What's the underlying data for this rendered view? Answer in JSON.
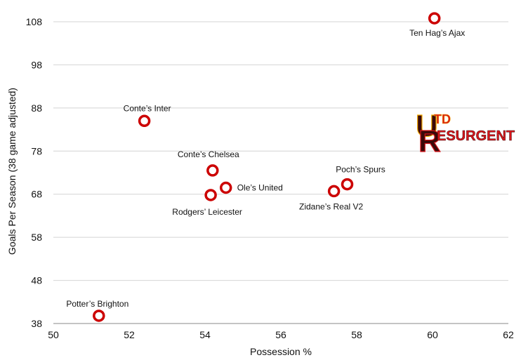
{
  "chart_data": {
    "type": "scatter",
    "title": "",
    "xlabel": "Possession %",
    "ylabel": "Goals Per Season (38 game adjusted)",
    "xlim": [
      50,
      62
    ],
    "ylim": [
      38,
      112
    ],
    "x_ticks": [
      50,
      52,
      54,
      56,
      58,
      60,
      62
    ],
    "y_ticks": [
      38,
      48,
      58,
      68,
      78,
      88,
      98,
      108
    ],
    "grid": true,
    "marker_color": "#cc0000",
    "points": [
      {
        "label": "Ten Hag’s Ajax",
        "x": 60.05,
        "y": 108.8
      },
      {
        "label": "Conte’s Inter",
        "x": 52.4,
        "y": 85.0
      },
      {
        "label": "Conte’s Chelsea",
        "x": 54.2,
        "y": 73.5
      },
      {
        "label": "Ole’s United",
        "x": 54.55,
        "y": 69.5
      },
      {
        "label": "Rodgers’ Leicester",
        "x": 54.15,
        "y": 67.8
      },
      {
        "label": "Poch’s Spurs",
        "x": 57.75,
        "y": 70.3
      },
      {
        "label": "Zidane’s Real V2",
        "x": 57.4,
        "y": 68.7
      },
      {
        "label": "Potter’s Brighton",
        "x": 51.2,
        "y": 39.8
      }
    ]
  },
  "logo": {
    "big": "U",
    "top": "TD",
    "bottom": "ESURGENT",
    "r": "R",
    "colors": {
      "dark": "#3a0a0a",
      "red": "#d8161b",
      "gold": "#f2a900"
    }
  }
}
